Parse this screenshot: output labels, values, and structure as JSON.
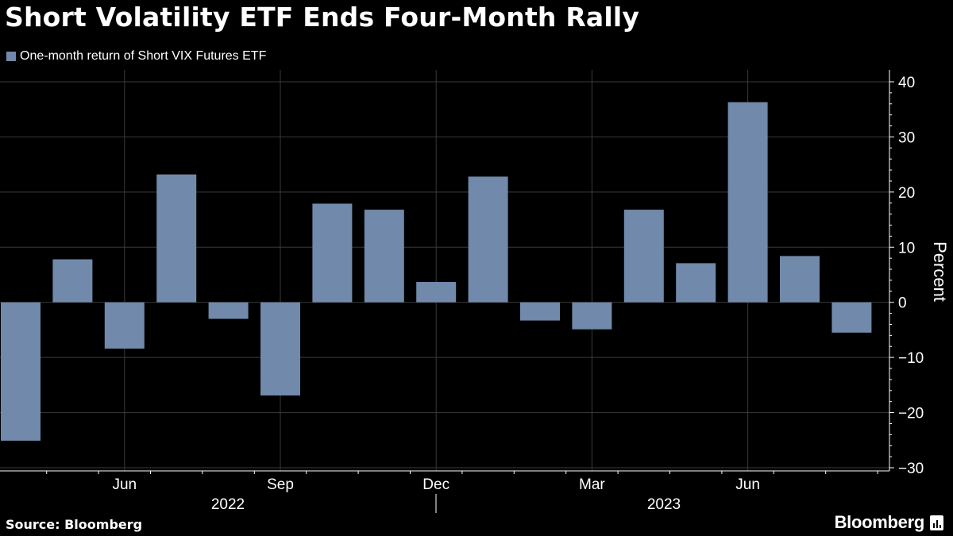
{
  "title": "Short Volatility ETF Ends Four-Month Rally",
  "legend": {
    "label": "One-month return of Short VIX Futures ETF",
    "swatch_color": "#7189aa"
  },
  "source": "Source: Bloomberg",
  "brand": "Bloomberg",
  "brand_icon": "bloomberg-bars-icon",
  "chart_data": {
    "type": "bar",
    "categories": [
      "2022-04",
      "2022-05",
      "2022-06",
      "2022-07",
      "2022-08",
      "2022-09",
      "2022-10",
      "2022-11",
      "2022-12",
      "2023-01",
      "2023-02",
      "2023-03",
      "2023-04",
      "2023-05",
      "2023-06",
      "2023-07",
      "2023-08"
    ],
    "series": [
      {
        "name": "One-month return of Short VIX Futures ETF",
        "values": [
          -25.1,
          7.8,
          -8.4,
          23.2,
          -3.0,
          -16.9,
          17.9,
          16.8,
          3.7,
          22.8,
          -3.3,
          -4.9,
          16.8,
          7.1,
          36.3,
          8.4,
          -5.5
        ]
      }
    ],
    "ylabel": "Percent",
    "ylim": [
      -30,
      40
    ],
    "yticks": [
      40,
      30,
      20,
      10,
      0,
      -10,
      -20,
      -30
    ],
    "xtick_labels": [
      {
        "label": "Jun",
        "at": "2022-06"
      },
      {
        "label": "Sep",
        "at": "2022-09"
      },
      {
        "label": "Dec",
        "at": "2022-12"
      },
      {
        "label": "Mar",
        "at": "2023-03"
      },
      {
        "label": "Jun",
        "at": "2023-06"
      }
    ],
    "year_labels": [
      "2022",
      "2023"
    ],
    "grid": true,
    "axis_side": "right",
    "legend_position": "top-left",
    "bar_color": "#7189aa",
    "grid_color": "#3a3a3a"
  }
}
